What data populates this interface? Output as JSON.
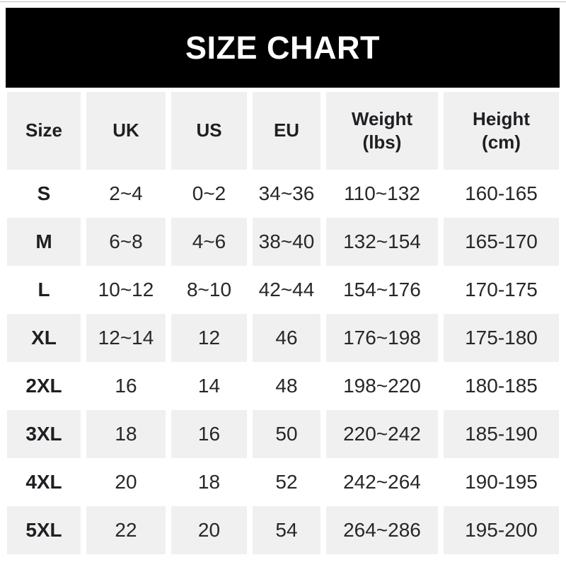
{
  "banner": {
    "title": "SIZE CHART"
  },
  "colors": {
    "banner_bg": "#000000",
    "banner_text": "#ffffff",
    "stripe_bg": "#f0f0f0",
    "text": "#1f1f23",
    "page_bg": "#ffffff"
  },
  "chart_data": {
    "type": "table",
    "title": "SIZE CHART",
    "columns": [
      "Size",
      "UK",
      "US",
      "EU",
      "Weight\n(lbs)",
      "Height\n(cm)"
    ],
    "rows": [
      [
        "S",
        "2~4",
        "0~2",
        "34~36",
        "110~132",
        "160-165"
      ],
      [
        "M",
        "6~8",
        "4~6",
        "38~40",
        "132~154",
        "165-170"
      ],
      [
        "L",
        "10~12",
        "8~10",
        "42~44",
        "154~176",
        "170-175"
      ],
      [
        "XL",
        "12~14",
        "12",
        "46",
        "176~198",
        "175-180"
      ],
      [
        "2XL",
        "16",
        "14",
        "48",
        "198~220",
        "180-185"
      ],
      [
        "3XL",
        "18",
        "16",
        "50",
        "220~242",
        "185-190"
      ],
      [
        "4XL",
        "20",
        "18",
        "52",
        "242~264",
        "190-195"
      ],
      [
        "5XL",
        "22",
        "20",
        "54",
        "264~286",
        "195-200"
      ]
    ],
    "layout": {
      "striped": true,
      "stripe_pattern": "header row and even data rows shaded light gray",
      "grid": "white vertical gutters between columns, no horizontal rules",
      "legend": "none"
    }
  }
}
